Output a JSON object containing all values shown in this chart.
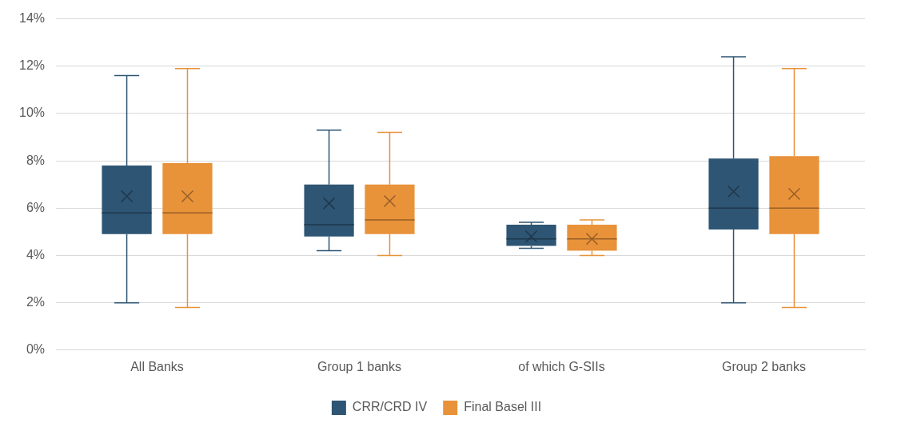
{
  "chart_data": {
    "type": "box",
    "categories": [
      "All Banks",
      "Group 1 banks",
      "of which G-SIIs",
      "Group 2 banks"
    ],
    "series": [
      {
        "name": "CRR/CRD IV",
        "color": "#2e5573",
        "boxes": [
          {
            "low": 2.0,
            "q1": 4.9,
            "median": 5.8,
            "q3": 7.8,
            "high": 11.6,
            "mean": 6.5
          },
          {
            "low": 4.2,
            "q1": 4.8,
            "median": 5.3,
            "q3": 7.0,
            "high": 9.3,
            "mean": 6.2
          },
          {
            "low": 4.3,
            "q1": 4.4,
            "median": 4.7,
            "q3": 5.3,
            "high": 5.4,
            "mean": 4.8
          },
          {
            "low": 2.0,
            "q1": 5.1,
            "median": 6.0,
            "q3": 8.1,
            "high": 12.4,
            "mean": 6.7
          }
        ]
      },
      {
        "name": "Final Basel III",
        "color": "#e8923a",
        "boxes": [
          {
            "low": 1.8,
            "q1": 4.9,
            "median": 5.8,
            "q3": 7.9,
            "high": 11.9,
            "mean": 6.5
          },
          {
            "low": 4.0,
            "q1": 4.9,
            "median": 5.5,
            "q3": 7.0,
            "high": 9.2,
            "mean": 6.3
          },
          {
            "low": 4.0,
            "q1": 4.2,
            "median": 4.7,
            "q3": 5.3,
            "high": 5.5,
            "mean": 4.7
          },
          {
            "low": 1.8,
            "q1": 4.9,
            "median": 6.0,
            "q3": 8.2,
            "high": 11.9,
            "mean": 6.6
          }
        ]
      }
    ],
    "ylim": [
      0,
      14
    ],
    "yticks": [
      {
        "value": 0,
        "label": "0%"
      },
      {
        "value": 2,
        "label": "2%"
      },
      {
        "value": 4,
        "label": "4%"
      },
      {
        "value": 6,
        "label": "6%"
      },
      {
        "value": 8,
        "label": "8%"
      },
      {
        "value": 10,
        "label": "10%"
      },
      {
        "value": 12,
        "label": "12%"
      },
      {
        "value": 14,
        "label": "14%"
      }
    ],
    "grid": "y",
    "legend": "bottom"
  }
}
